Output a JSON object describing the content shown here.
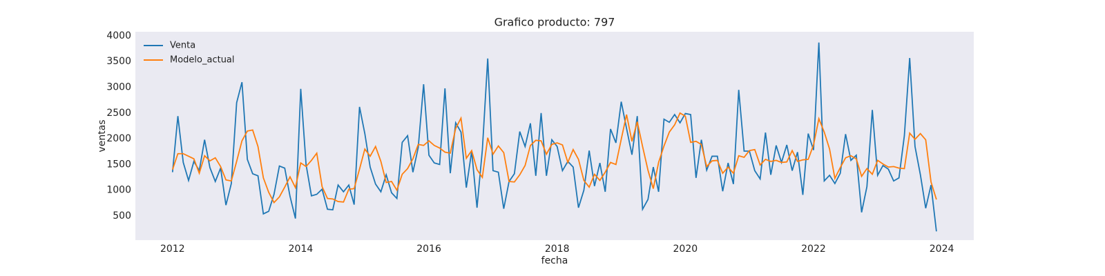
{
  "chart_data": {
    "type": "line",
    "title": "Grafico producto: 797",
    "xlabel": "fecha",
    "ylabel": "ventas",
    "x": [
      2012,
      2012.083,
      2012.167,
      2012.25,
      2012.333,
      2012.417,
      2012.5,
      2012.583,
      2012.667,
      2012.75,
      2012.833,
      2012.917,
      2013,
      2013.083,
      2013.167,
      2013.25,
      2013.333,
      2013.417,
      2013.5,
      2013.583,
      2013.667,
      2013.75,
      2013.833,
      2013.917,
      2014,
      2014.083,
      2014.167,
      2014.25,
      2014.333,
      2014.417,
      2014.5,
      2014.583,
      2014.667,
      2014.75,
      2014.833,
      2014.917,
      2015,
      2015.083,
      2015.167,
      2015.25,
      2015.333,
      2015.417,
      2015.5,
      2015.583,
      2015.667,
      2015.75,
      2015.833,
      2015.917,
      2016,
      2016.083,
      2016.167,
      2016.25,
      2016.333,
      2016.417,
      2016.5,
      2016.583,
      2016.667,
      2016.75,
      2016.833,
      2016.917,
      2017,
      2017.083,
      2017.167,
      2017.25,
      2017.333,
      2017.417,
      2017.5,
      2017.583,
      2017.667,
      2017.75,
      2017.833,
      2017.917,
      2018,
      2018.083,
      2018.167,
      2018.25,
      2018.333,
      2018.417,
      2018.5,
      2018.583,
      2018.667,
      2018.75,
      2018.833,
      2018.917,
      2019,
      2019.083,
      2019.167,
      2019.25,
      2019.333,
      2019.417,
      2019.5,
      2019.583,
      2019.667,
      2019.75,
      2019.833,
      2019.917,
      2020,
      2020.083,
      2020.167,
      2020.25,
      2020.333,
      2020.417,
      2020.5,
      2020.583,
      2020.667,
      2020.75,
      2020.833,
      2020.917,
      2021,
      2021.083,
      2021.167,
      2021.25,
      2021.333,
      2021.417,
      2021.5,
      2021.583,
      2021.667,
      2021.75,
      2021.833,
      2021.917,
      2022,
      2022.083,
      2022.167,
      2022.25,
      2022.333,
      2022.417,
      2022.5,
      2022.583,
      2022.667,
      2022.75,
      2022.833,
      2022.917,
      2023,
      2023.083,
      2023.167,
      2023.25,
      2023.333,
      2023.417,
      2023.5,
      2023.583,
      2023.667,
      2023.75,
      2023.833,
      2023.917
    ],
    "series": [
      {
        "name": "Venta",
        "color": "#1f77b4",
        "values": [
          1350,
          2440,
          1540,
          1190,
          1560,
          1380,
          1980,
          1440,
          1170,
          1430,
          710,
          1130,
          2700,
          3100,
          1600,
          1320,
          1280,
          540,
          590,
          920,
          1470,
          1430,
          880,
          450,
          2970,
          1500,
          890,
          920,
          1020,
          630,
          620,
          1100,
          970,
          1100,
          720,
          2620,
          2100,
          1450,
          1120,
          970,
          1300,
          950,
          840,
          1930,
          2060,
          1350,
          1830,
          3060,
          1680,
          1530,
          1500,
          2980,
          1330,
          2310,
          2130,
          1050,
          1760,
          660,
          1780,
          3560,
          1380,
          1350,
          640,
          1170,
          1320,
          2140,
          1850,
          2300,
          1280,
          2500,
          1280,
          1980,
          1850,
          1380,
          1560,
          1450,
          660,
          1000,
          1770,
          1080,
          1530,
          970,
          2190,
          1920,
          2720,
          2200,
          1690,
          2440,
          630,
          820,
          1450,
          970,
          2380,
          2320,
          2470,
          2310,
          2490,
          2470,
          1240,
          1980,
          1390,
          1660,
          1660,
          980,
          1530,
          1120,
          2950,
          1760,
          1760,
          1380,
          1220,
          2120,
          1300,
          1870,
          1540,
          1880,
          1380,
          1740,
          910,
          2100,
          1780,
          3870,
          1180,
          1290,
          1130,
          1330,
          2090,
          1580,
          1680,
          570,
          1070,
          2560,
          1290,
          1480,
          1410,
          1180,
          1240,
          2060,
          3570,
          1850,
          1300,
          650,
          1100,
          200
        ]
      },
      {
        "name": "Modelo_actual",
        "color": "#ff7f0e",
        "values": [
          1400,
          1710,
          1710,
          1660,
          1610,
          1330,
          1670,
          1570,
          1630,
          1460,
          1200,
          1180,
          1560,
          1960,
          2150,
          2170,
          1850,
          1240,
          960,
          760,
          870,
          1060,
          1260,
          1050,
          1530,
          1460,
          1580,
          1720,
          1070,
          840,
          830,
          780,
          770,
          1020,
          1030,
          1410,
          1800,
          1660,
          1850,
          1560,
          1150,
          1170,
          1000,
          1310,
          1420,
          1610,
          1890,
          1870,
          1960,
          1870,
          1820,
          1740,
          1720,
          2200,
          2400,
          1620,
          1770,
          1400,
          1250,
          2020,
          1700,
          1860,
          1730,
          1170,
          1160,
          1300,
          1480,
          1870,
          1970,
          1960,
          1700,
          1890,
          1920,
          1880,
          1540,
          1790,
          1600,
          1190,
          1060,
          1310,
          1190,
          1350,
          1540,
          1500,
          1990,
          2470,
          1950,
          2330,
          1850,
          1390,
          1030,
          1540,
          1860,
          2130,
          2270,
          2500,
          2440,
          1930,
          1950,
          1890,
          1460,
          1570,
          1580,
          1330,
          1450,
          1330,
          1670,
          1640,
          1770,
          1790,
          1490,
          1600,
          1560,
          1580,
          1540,
          1550,
          1770,
          1560,
          1590,
          1600,
          1880,
          2390,
          2130,
          1800,
          1230,
          1440,
          1630,
          1670,
          1610,
          1270,
          1420,
          1310,
          1580,
          1510,
          1450,
          1460,
          1430,
          1420,
          2110,
          1990,
          2100,
          1980,
          1160,
          820
        ]
      }
    ],
    "xlim": [
      2011.42,
      2024.5
    ],
    "xticks": [
      2012,
      2014,
      2016,
      2018,
      2020,
      2022,
      2024
    ],
    "ylim": [
      30,
      4080
    ],
    "yticks": [
      500,
      1000,
      1500,
      2000,
      2500,
      3000,
      3500,
      4000
    ],
    "grid": false,
    "legend": "upper left"
  }
}
